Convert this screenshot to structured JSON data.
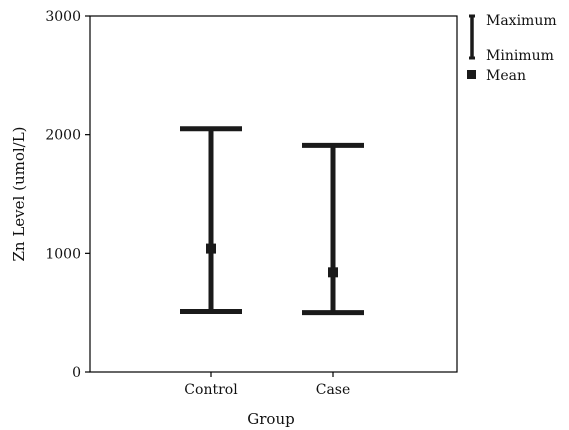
{
  "chart_data": {
    "type": "error-bar",
    "categories": [
      "Control",
      "Case"
    ],
    "series": [
      {
        "name": "Maximum",
        "values": [
          2050,
          1910
        ]
      },
      {
        "name": "Minimum",
        "values": [
          510,
          500
        ]
      },
      {
        "name": "Mean",
        "values": [
          1040,
          840
        ]
      }
    ],
    "xlabel": "Group",
    "ylabel": "Zn Level (umol/L)",
    "ylim": [
      0,
      3000
    ],
    "yticks": [
      0,
      1000,
      2000,
      3000
    ],
    "grid": false,
    "legend": {
      "placement": "top-right",
      "entries": [
        {
          "label": "Maximum",
          "marker": "bar-top"
        },
        {
          "label": "Minimum",
          "marker": "bar-bottom"
        },
        {
          "label": "Mean",
          "marker": "square"
        }
      ]
    },
    "colors": {
      "bars": "#1a1a1a",
      "axes": "#000000"
    }
  }
}
